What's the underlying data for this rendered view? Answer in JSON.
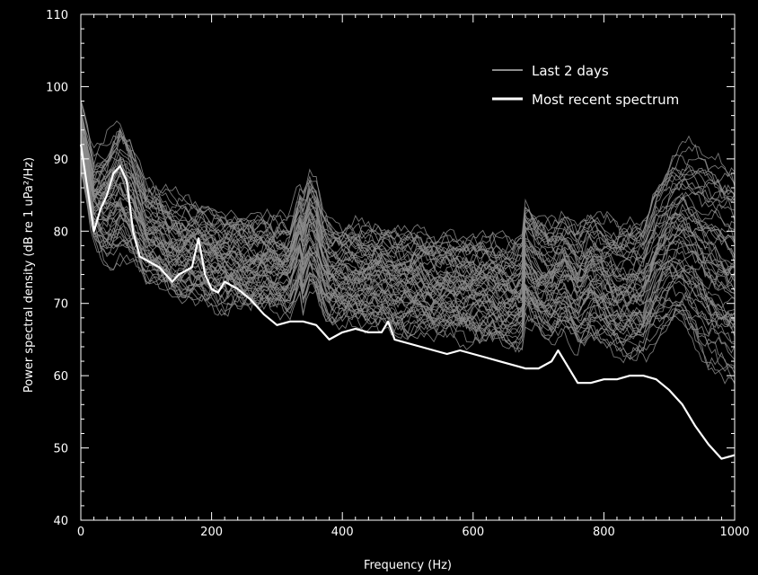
{
  "chart_data": {
    "type": "line",
    "title": "",
    "xlabel": "Frequency (Hz)",
    "ylabel": "Power spectral density (dB re 1 uPa²/Hz)",
    "xlim": [
      0,
      1000
    ],
    "ylim": [
      40,
      110
    ],
    "x_ticks": [
      "0",
      "200",
      "400",
      "600",
      "800",
      "1000"
    ],
    "y_ticks": [
      "40",
      "50",
      "60",
      "70",
      "80",
      "90",
      "100",
      "110"
    ],
    "grid": false,
    "legend": {
      "position": "top-right",
      "entries": [
        {
          "label": "Last 2 days",
          "color": "#8c8c8c"
        },
        {
          "label": "Most recent spectrum",
          "color": "#ffffff"
        }
      ]
    },
    "series": [
      {
        "name": "Most recent spectrum",
        "color": "#ffffff",
        "x": [
          0,
          10,
          20,
          30,
          40,
          50,
          60,
          70,
          80,
          90,
          100,
          120,
          140,
          150,
          160,
          170,
          180,
          190,
          200,
          210,
          220,
          240,
          260,
          280,
          300,
          320,
          340,
          360,
          380,
          400,
          420,
          440,
          460,
          470,
          480,
          500,
          520,
          540,
          560,
          580,
          600,
          620,
          640,
          660,
          680,
          700,
          720,
          730,
          740,
          760,
          780,
          800,
          820,
          840,
          860,
          880,
          900,
          920,
          940,
          960,
          980,
          1000
        ],
        "y": [
          92,
          86,
          80,
          83,
          85,
          88,
          89,
          87,
          80,
          76.5,
          76,
          75,
          73,
          74,
          74.5,
          75,
          79,
          74,
          72,
          71.5,
          73,
          72,
          70.5,
          68.5,
          67,
          67.5,
          67.5,
          67,
          65,
          66,
          66.5,
          66,
          66,
          67.5,
          65,
          64.5,
          64,
          63.5,
          63,
          63.5,
          63,
          62.5,
          62,
          61.5,
          61,
          61,
          62,
          63.5,
          62,
          59,
          59,
          59.5,
          59.5,
          60,
          60,
          59.5,
          58,
          56,
          53,
          50.5,
          48.5,
          49
        ]
      },
      {
        "name": "Last 2 days",
        "color": "#8c8c8c",
        "x": [
          0,
          20,
          40,
          60,
          80,
          100,
          120,
          140,
          160,
          180,
          200,
          220,
          240,
          260,
          280,
          300,
          320,
          335,
          340,
          350,
          360,
          370,
          380,
          400,
          420,
          440,
          460,
          480,
          500,
          520,
          540,
          560,
          580,
          600,
          620,
          640,
          660,
          675,
          680,
          700,
          720,
          740,
          760,
          780,
          800,
          820,
          840,
          860,
          880,
          900,
          920,
          940,
          960,
          980,
          1000
        ],
        "y_median": [
          93,
          84,
          84,
          86,
          84,
          80,
          79,
          77.5,
          77,
          77,
          76.5,
          76,
          76,
          75.5,
          75.5,
          75,
          75,
          79,
          77,
          80,
          79,
          76,
          74.5,
          74,
          74,
          73.5,
          73.5,
          73,
          73,
          73,
          72.5,
          72.5,
          72,
          72,
          72,
          71.5,
          71.5,
          72,
          76,
          74,
          73,
          74,
          72,
          74,
          73,
          72,
          72,
          72,
          76,
          78,
          79,
          78,
          76,
          75,
          74
        ],
        "y_spread": [
          4,
          5,
          7,
          8,
          7,
          6,
          6,
          6,
          6,
          5.5,
          5.5,
          5.5,
          5.5,
          5.5,
          5.5,
          5.5,
          5.5,
          6,
          7,
          7,
          7,
          6,
          6,
          6,
          6,
          6,
          6,
          6,
          6,
          6,
          6,
          6,
          6,
          6,
          6,
          6,
          6,
          6.5,
          7,
          7,
          7,
          7,
          7,
          7,
          7,
          7.5,
          8,
          8,
          9,
          9.5,
          10,
          11,
          12,
          12,
          12
        ],
        "count": 60
      }
    ]
  }
}
